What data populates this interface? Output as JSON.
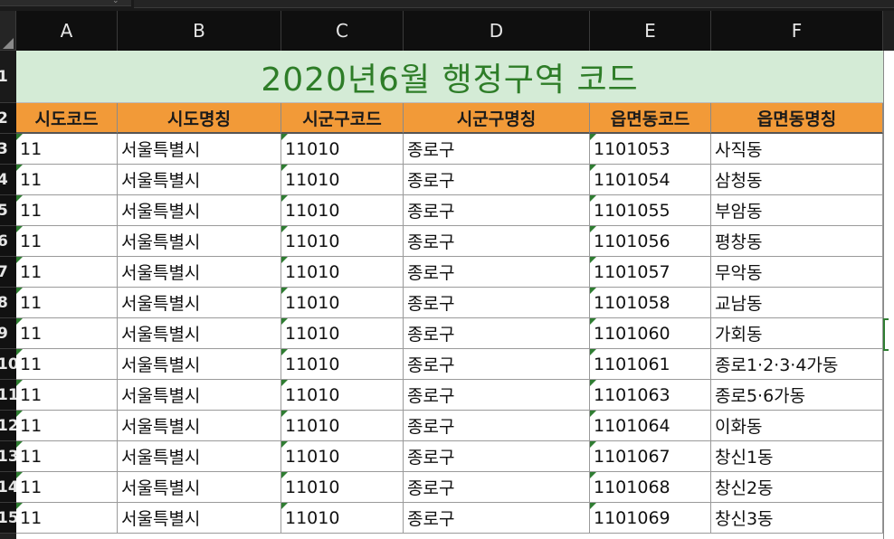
{
  "sheet": {
    "columns": [
      "A",
      "B",
      "C",
      "D",
      "E",
      "F"
    ],
    "row_numbers": [
      "1",
      "2",
      "3",
      "4",
      "5",
      "6",
      "7",
      "8",
      "9",
      "10",
      "11",
      "12",
      "13",
      "14",
      "15"
    ],
    "title": "2020년6월 행정구역 코드",
    "headers": [
      "시도코드",
      "시도명칭",
      "시군구코드",
      "시군구명칭",
      "읍면동코드",
      "읍면동명칭"
    ],
    "rows": [
      [
        "11",
        "서울특별시",
        "11010",
        "종로구",
        "1101053",
        "사직동"
      ],
      [
        "11",
        "서울특별시",
        "11010",
        "종로구",
        "1101054",
        "삼청동"
      ],
      [
        "11",
        "서울특별시",
        "11010",
        "종로구",
        "1101055",
        "부암동"
      ],
      [
        "11",
        "서울특별시",
        "11010",
        "종로구",
        "1101056",
        "평창동"
      ],
      [
        "11",
        "서울특별시",
        "11010",
        "종로구",
        "1101057",
        "무악동"
      ],
      [
        "11",
        "서울특별시",
        "11010",
        "종로구",
        "1101058",
        "교남동"
      ],
      [
        "11",
        "서울특별시",
        "11010",
        "종로구",
        "1101060",
        "가회동"
      ],
      [
        "11",
        "서울특별시",
        "11010",
        "종로구",
        "1101061",
        "종로1·2·3·4가동"
      ],
      [
        "11",
        "서울특별시",
        "11010",
        "종로구",
        "1101063",
        "종로5·6가동"
      ],
      [
        "11",
        "서울특별시",
        "11010",
        "종로구",
        "1101064",
        "이화동"
      ],
      [
        "11",
        "서울특별시",
        "11010",
        "종로구",
        "1101067",
        "창신1동"
      ],
      [
        "11",
        "서울특별시",
        "11010",
        "종로구",
        "1101068",
        "창신2동"
      ],
      [
        "11",
        "서울특별시",
        "11010",
        "종로구",
        "1101069",
        "창신3동"
      ]
    ],
    "text_flag_columns": [
      0,
      2,
      4
    ]
  },
  "colors": {
    "title_bg": "#d4ebd6",
    "title_text": "#2e7d28",
    "header_bg": "#f29a38",
    "text_indicator": "#2f7d32"
  }
}
